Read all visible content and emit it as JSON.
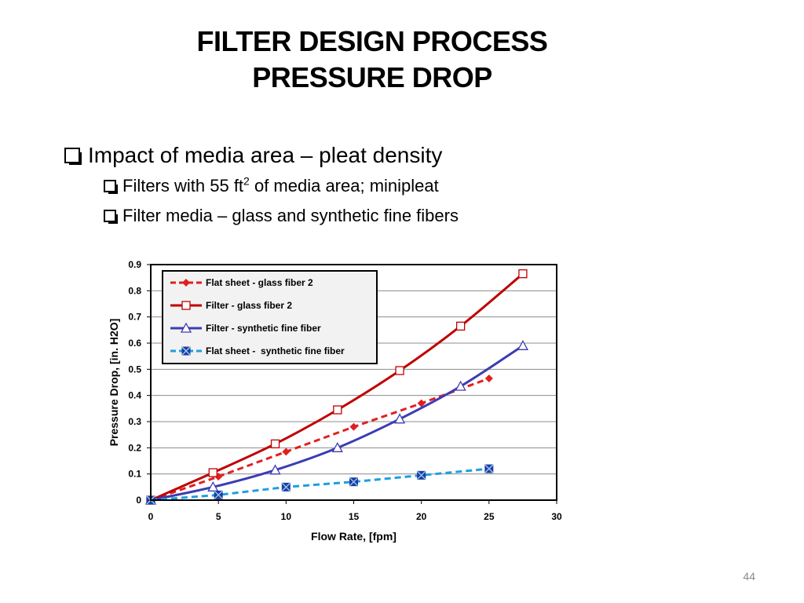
{
  "slide": {
    "title_line1": "FILTER DESIGN PROCESS",
    "title_line2": "PRESSURE DROP",
    "bullet1": "Impact of media area – pleat density",
    "sub1_pre": "Filters with 55 ft",
    "sub1_sup": "2",
    "sub1_post": " of media area; minipleat",
    "sub2": "Filter media – glass and synthetic fine fibers",
    "page_number": "44"
  },
  "chart_data": {
    "type": "line",
    "title": "",
    "xlabel": "Flow Rate, [fpm]",
    "ylabel": "Pressure Drop, [in. H2O]",
    "xlim": [
      0,
      30
    ],
    "ylim": [
      0,
      0.9
    ],
    "xticks": [
      0,
      5,
      10,
      15,
      20,
      25,
      30
    ],
    "yticks": [
      0,
      0.1,
      0.2,
      0.3,
      0.4,
      0.5,
      0.6,
      0.7,
      0.8,
      0.9
    ],
    "xtick_labels": [
      "0",
      "5",
      "10",
      "15",
      "20",
      "25",
      "30"
    ],
    "ytick_labels": [
      "0",
      "0.1",
      "0.2",
      "0.3",
      "0.4",
      "0.5",
      "0.6",
      "0.7",
      "0.8",
      "0.9"
    ],
    "grid": "horizontal",
    "legend_position": "top-left",
    "series": [
      {
        "name": "Flat sheet - glass fiber 2",
        "color": "#e02020",
        "line": "dashed",
        "marker": "diamond",
        "x": [
          0,
          5,
          10,
          15,
          20,
          25
        ],
        "y": [
          0,
          0.09,
          0.185,
          0.28,
          0.37,
          0.465
        ]
      },
      {
        "name": "Filter - glass fiber 2",
        "color": "#c00000",
        "line": "solid",
        "marker": "square-open",
        "x": [
          0,
          4.6,
          9.2,
          13.8,
          18.4,
          22.9,
          27.5
        ],
        "y": [
          0,
          0.105,
          0.215,
          0.345,
          0.495,
          0.665,
          0.865
        ]
      },
      {
        "name": "Filter - synthetic fine fiber",
        "color": "#3c3cb4",
        "line": "solid",
        "marker": "triangle-open",
        "x": [
          0,
          4.6,
          9.2,
          13.8,
          18.4,
          22.9,
          27.5
        ],
        "y": [
          0,
          0.05,
          0.115,
          0.2,
          0.31,
          0.435,
          0.59
        ]
      },
      {
        "name": "Flat sheet -  synthetic fine fiber",
        "color": "#1e9ee0",
        "line": "dashed",
        "marker": "square-x",
        "marker_color": "#1e3ca0",
        "x": [
          0,
          5,
          10,
          15,
          20,
          25
        ],
        "y": [
          0,
          0.02,
          0.05,
          0.07,
          0.095,
          0.12
        ]
      }
    ]
  }
}
